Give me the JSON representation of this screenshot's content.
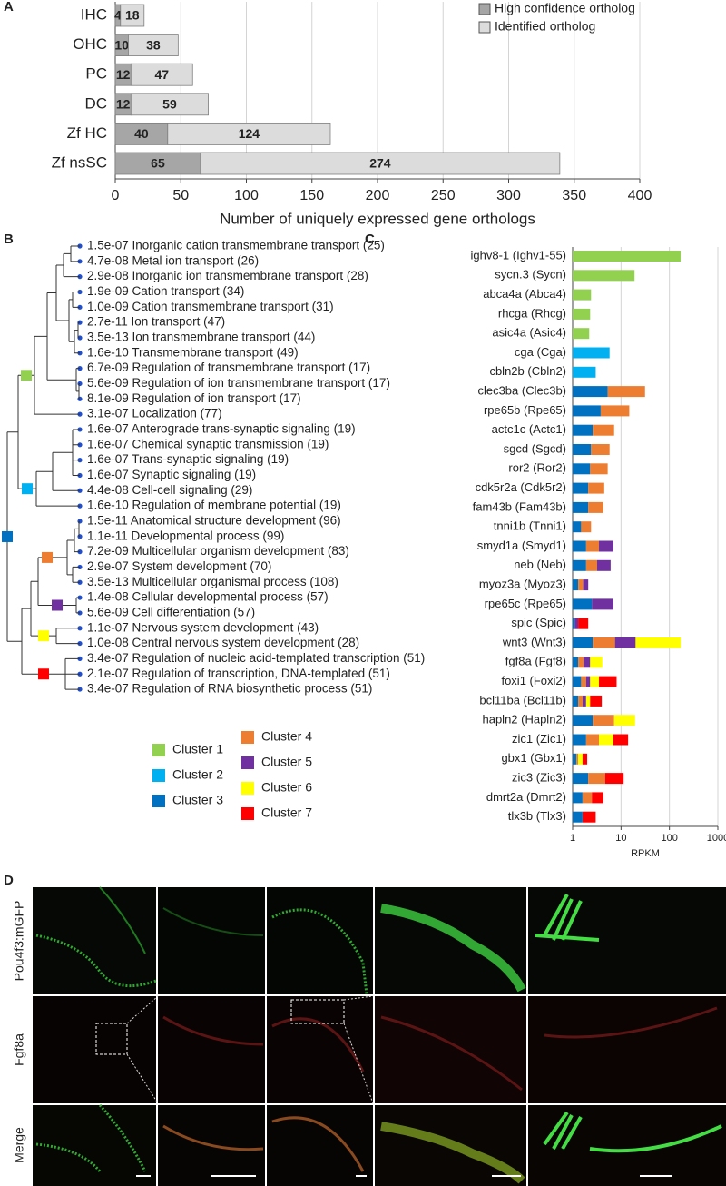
{
  "chart_data": [
    {
      "type": "bar",
      "orientation": "horizontal",
      "stacked": true,
      "panel_label": "A",
      "categories": [
        "IHC",
        "OHC",
        "PC",
        "DC",
        "Zf HC",
        "Zf nsSC"
      ],
      "series": [
        {
          "name": "High confidence ortholog",
          "color": "#a6a6a6",
          "values": [
            4,
            10,
            12,
            12,
            40,
            65
          ]
        },
        {
          "name": "Identified ortholog",
          "color": "#dcdcdc",
          "values": [
            18,
            38,
            47,
            59,
            124,
            274
          ]
        }
      ],
      "xlabel": "Number of uniquely expressed gene orthologs",
      "xlim": [
        0,
        400
      ],
      "xticks": [
        0,
        50,
        100,
        150,
        200,
        250,
        300,
        350,
        400
      ],
      "grid": true,
      "legend": "upper right",
      "value_labels_shown": true
    },
    {
      "type": "bar",
      "orientation": "horizontal",
      "stacked": true,
      "log": true,
      "panel_label": "C",
      "categories": [
        "ighv8-1 (Ighv1-55)",
        "sycn.3 (Sycn)",
        "abca4a (Abca4)",
        "rhcga (Rhcg)",
        "asic4a (Asic4)",
        "cga (Cga)",
        "cbln2b (Cbln2)",
        "clec3ba (Clec3b)",
        "rpe65b (Rpe65)",
        "actc1c (Actc1)",
        "sgcd (Sgcd)",
        "ror2 (Ror2)",
        "cdk5r2a (Cdk5r2)",
        "fam43b (Fam43b)",
        "tnni1b (Tnni1)",
        "smyd1a (Smyd1)",
        "neb (Neb)",
        "myoz3a (Myoz3)",
        "rpe65c (Rpe65)",
        "spic (Spic)",
        "wnt3 (Wnt3)",
        "fgf8a (Fgf8)",
        "foxi1 (Foxi2)",
        "bcl11ba (Bcl11b)",
        "hapln2 (Hapln2)",
        "zic1 (Zic1)",
        "gbx1 (Gbx1)",
        "zic3 (Zic3)",
        "dmrt2a (Dmrt2)",
        "tlx3b (Tlx3)"
      ],
      "series": [
        {
          "name": "Cluster 1",
          "color": "#92d050",
          "values": [
            170,
            19,
            2.4,
            2.3,
            2.2,
            null,
            null,
            null,
            null,
            null,
            null,
            null,
            null,
            null,
            null,
            null,
            null,
            null,
            null,
            null,
            null,
            null,
            null,
            null,
            null,
            null,
            null,
            null,
            null,
            null
          ]
        },
        {
          "name": "Cluster 2",
          "color": "#00b0f0",
          "values": [
            null,
            null,
            null,
            null,
            null,
            5.8,
            3.0,
            null,
            null,
            null,
            null,
            null,
            null,
            null,
            null,
            null,
            null,
            null,
            null,
            null,
            null,
            null,
            null,
            null,
            null,
            null,
            null,
            null,
            null,
            null
          ]
        },
        {
          "name": "Cluster 3",
          "color": "#0070c0",
          "values": [
            null,
            null,
            null,
            null,
            null,
            null,
            null,
            5.3,
            3.8,
            2.6,
            2.4,
            2.3,
            2.1,
            2.1,
            1.5,
            1.9,
            1.9,
            1.3,
            2.5,
            1.1,
            2.6,
            1.3,
            1.5,
            1.3,
            2.6,
            1.9,
            1.2,
            2.1,
            1.6,
            1.6
          ]
        },
        {
          "name": "Cluster 4",
          "color": "#ed7d31",
          "values": [
            null,
            null,
            null,
            null,
            null,
            null,
            null,
            26,
            11,
            4.6,
            3.4,
            3,
            2.4,
            2.2,
            0.9,
            1.6,
            1.3,
            0.35,
            null,
            null,
            4.9,
            0.4,
            0.4,
            0.3,
            4.6,
            1.6,
            0.1,
            2.6,
            0.9,
            null
          ]
        },
        {
          "name": "Cluster 5",
          "color": "#7030a0",
          "values": [
            null,
            null,
            null,
            null,
            null,
            null,
            null,
            null,
            null,
            null,
            null,
            null,
            null,
            null,
            null,
            3.4,
            2.9,
            0.45,
            4.4,
            0.2,
            12.5,
            0.6,
            0.4,
            0.3,
            null,
            null,
            null,
            null,
            null,
            null
          ]
        },
        {
          "name": "Cluster 6",
          "color": "#ffff00",
          "values": [
            null,
            null,
            null,
            null,
            null,
            null,
            null,
            null,
            null,
            null,
            null,
            null,
            null,
            null,
            null,
            null,
            null,
            null,
            null,
            null,
            150,
            1.8,
            1.2,
            0.4,
            12.3,
            3.4,
            0.3,
            null,
            null,
            null
          ]
        },
        {
          "name": "Cluster 7",
          "color": "#ff0000",
          "values": [
            null,
            null,
            null,
            null,
            null,
            null,
            null,
            null,
            null,
            null,
            null,
            null,
            null,
            null,
            null,
            null,
            null,
            null,
            null,
            0.8,
            null,
            null,
            4.6,
            1.7,
            null,
            7.1,
            0.4,
            6.6,
            1.8,
            1.4
          ]
        }
      ],
      "xlabel": "RPKM",
      "xlim": [
        1,
        1000
      ],
      "xticks": [
        1,
        10,
        100,
        1000
      ],
      "grid": true
    }
  ],
  "go_tree": {
    "panel_label": "B",
    "terms": [
      "1.5e-07 Inorganic cation transmembrane transport (25)",
      "4.7e-08 Metal ion transport (26)",
      "2.9e-08 Inorganic ion transmembrane transport (28)",
      "1.9e-09 Cation transport (34)",
      "1.0e-09 Cation transmembrane transport (31)",
      "2.7e-11 Ion transport (47)",
      "3.5e-13 Ion transmembrane transport (44)",
      "1.6e-10 Transmembrane transport (49)",
      "6.7e-09 Regulation of transmembrane transport (17)",
      "5.6e-09 Regulation of ion transmembrane transport (17)",
      "8.1e-09 Regulation of ion transport (17)",
      "3.1e-07 Localization (77)",
      "1.6e-07 Anterograde trans-synaptic signaling (19)",
      "1.6e-07 Chemical synaptic transmission (19)",
      "1.6e-07 Trans-synaptic signaling (19)",
      "1.6e-07 Synaptic signaling (19)",
      "4.4e-08 Cell-cell signaling (29)",
      "1.6e-10 Regulation of membrane potential (19)",
      "1.5e-11 Anatomical structure development (96)",
      "1.1e-11 Developmental process (99)",
      "7.2e-09 Multicellular organism development (83)",
      "2.9e-07 System development (70)",
      "3.5e-13 Multicellular organismal process (108)",
      "1.4e-08 Cellular developmental process (57)",
      "5.6e-09 Cell differentiation (57)",
      "1.1e-07 Nervous system development (43)",
      "1.0e-08 Central nervous system development (28)",
      "3.4e-07 Regulation of nucleic acid-templated transcription (51)",
      "2.1e-07 Regulation of transcription, DNA-templated (51)",
      "3.4e-07 Regulation of RNA biosynthetic process (51)"
    ]
  },
  "micrographs": {
    "panel_label": "D",
    "row_labels": [
      "Pou4f3:mGFP",
      "Fgf8a",
      "Merge"
    ]
  }
}
